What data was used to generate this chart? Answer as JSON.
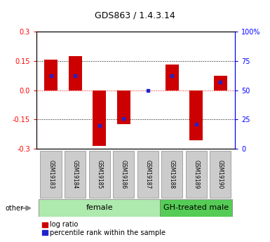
{
  "title": "GDS863 / 1.4.3.14",
  "samples": [
    "GSM19183",
    "GSM19184",
    "GSM19185",
    "GSM19186",
    "GSM19187",
    "GSM19188",
    "GSM19189",
    "GSM19190"
  ],
  "log_ratios": [
    0.155,
    0.175,
    -0.285,
    -0.175,
    0.0,
    0.13,
    -0.255,
    0.075
  ],
  "percentile_ranks": [
    62,
    62,
    20,
    26,
    50,
    62,
    21,
    57
  ],
  "female_indices": [
    0,
    1,
    2,
    3,
    4
  ],
  "male_indices": [
    5,
    6,
    7
  ],
  "female_label": "female",
  "male_label": "GH-treated male",
  "female_color": "#aeeaae",
  "male_color": "#55cc55",
  "ylim": [
    -0.3,
    0.3
  ],
  "yticks_left": [
    -0.3,
    -0.15,
    0.0,
    0.15,
    0.3
  ],
  "yticks_right": [
    0,
    25,
    50,
    75,
    100
  ],
  "bar_color": "#cc0000",
  "marker_color": "#2222cc",
  "bar_width": 0.55,
  "legend_items": [
    {
      "label": "log ratio",
      "color": "#cc0000"
    },
    {
      "label": "percentile rank within the sample",
      "color": "#2222cc"
    }
  ],
  "other_label": "other",
  "title_fontsize": 9,
  "tick_fontsize": 7,
  "sample_fontsize": 5.5,
  "group_fontsize": 8,
  "legend_fontsize": 7
}
